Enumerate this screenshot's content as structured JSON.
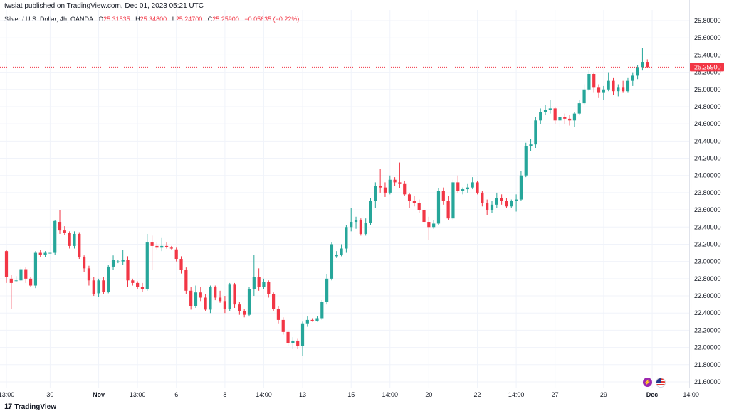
{
  "header": {
    "published_by": "twsiat published on TradingView.com, Dec 01, 2023 05:21 UTC"
  },
  "legend": {
    "symbol": "Silver / U.S. Dollar, 4h, OANDA",
    "open_label": "O",
    "open": "25.31535",
    "high_label": "H",
    "high": "25.34800",
    "low_label": "L",
    "low": "25.24700",
    "close_label": "C",
    "close": "25.25900",
    "change": "−0.05635 (−0.22%)"
  },
  "footer": {
    "brand": "TradingView",
    "logo_glyph": "17"
  },
  "badges": {
    "lightning_icon": "⚡",
    "flag_icon": "us-flag"
  },
  "colors": {
    "up": "#26a69a",
    "down": "#f23645",
    "grid": "#f0f3fa",
    "axis_text": "#131722",
    "price_label_bg": "#f23645"
  },
  "chart_data": {
    "type": "candlestick",
    "ylim": [
      21.5,
      25.9
    ],
    "y_ticks": [
      "25.80000",
      "25.60000",
      "25.40000",
      "25.20000",
      "25.00000",
      "24.80000",
      "24.60000",
      "24.40000",
      "24.20000",
      "24.00000",
      "23.80000",
      "23.60000",
      "23.40000",
      "23.20000",
      "23.00000",
      "22.80000",
      "22.60000",
      "22.40000",
      "22.20000",
      "22.00000",
      "21.80000",
      "21.60000"
    ],
    "x_ticks": [
      {
        "label": "13:00",
        "bar": 0
      },
      {
        "label": "30",
        "bar": 9
      },
      {
        "label": "Nov",
        "bar": 19
      },
      {
        "label": "13:00",
        "bar": 27
      },
      {
        "label": "6",
        "bar": 35
      },
      {
        "label": "8",
        "bar": 45
      },
      {
        "label": "14:00",
        "bar": 53
      },
      {
        "label": "13",
        "bar": 61
      },
      {
        "label": "15",
        "bar": 71
      },
      {
        "label": "14:00",
        "bar": 79
      },
      {
        "label": "20",
        "bar": 87
      },
      {
        "label": "22",
        "bar": 97
      },
      {
        "label": "14:00",
        "bar": 105
      },
      {
        "label": "27",
        "bar": 113
      },
      {
        "label": "29",
        "bar": 123
      },
      {
        "label": "Dec",
        "bar": 133
      },
      {
        "label": "14:00",
        "bar": 141
      }
    ],
    "last_price": 25.259,
    "last_price_label": "25.25900",
    "candles": [
      [
        23.12,
        23.13,
        22.75,
        22.82
      ],
      [
        22.8,
        22.84,
        22.45,
        22.75
      ],
      [
        22.78,
        22.83,
        22.76,
        22.78
      ],
      [
        22.78,
        22.93,
        22.77,
        22.91
      ],
      [
        22.91,
        22.93,
        22.75,
        22.8
      ],
      [
        22.8,
        22.82,
        22.7,
        22.72
      ],
      [
        22.72,
        23.12,
        22.69,
        23.1
      ],
      [
        23.1,
        23.13,
        23.05,
        23.08
      ],
      [
        23.08,
        23.12,
        23.05,
        23.1
      ],
      [
        23.1,
        23.1,
        23.1,
        23.1
      ],
      [
        23.1,
        23.48,
        23.08,
        23.47
      ],
      [
        23.46,
        23.6,
        23.32,
        23.36
      ],
      [
        23.36,
        23.41,
        23.31,
        23.33
      ],
      [
        23.33,
        23.35,
        23.15,
        23.18
      ],
      [
        23.18,
        23.35,
        23.15,
        23.32
      ],
      [
        23.32,
        23.34,
        23.03,
        23.05
      ],
      [
        23.05,
        23.07,
        22.88,
        22.92
      ],
      [
        22.92,
        22.95,
        22.72,
        22.78
      ],
      [
        22.78,
        22.82,
        22.6,
        22.62
      ],
      [
        22.63,
        22.8,
        22.59,
        22.78
      ],
      [
        22.78,
        22.82,
        22.62,
        22.65
      ],
      [
        22.65,
        22.96,
        22.63,
        22.94
      ],
      [
        22.94,
        23.07,
        22.9,
        23.02
      ],
      [
        23.0,
        23.02,
        22.98,
        23.0
      ],
      [
        23.0,
        23.13,
        22.96,
        23.02
      ],
      [
        23.02,
        23.06,
        22.7,
        22.78
      ],
      [
        22.78,
        22.8,
        22.72,
        22.75
      ],
      [
        22.75,
        22.77,
        22.68,
        22.7
      ],
      [
        22.7,
        22.75,
        22.65,
        22.68
      ],
      [
        22.68,
        23.32,
        22.66,
        23.22
      ],
      [
        23.22,
        23.3,
        22.9,
        23.18
      ],
      [
        23.18,
        23.22,
        23.14,
        23.16
      ],
      [
        23.16,
        23.28,
        23.12,
        23.18
      ],
      [
        23.18,
        23.22,
        23.15,
        23.17
      ],
      [
        23.16,
        23.18,
        23.14,
        23.15
      ],
      [
        23.14,
        23.16,
        23.0,
        23.03
      ],
      [
        23.03,
        23.06,
        22.86,
        22.9
      ],
      [
        22.9,
        22.93,
        22.62,
        22.66
      ],
      [
        22.66,
        22.7,
        22.44,
        22.48
      ],
      [
        22.48,
        22.72,
        22.46,
        22.64
      ],
      [
        22.64,
        22.7,
        22.54,
        22.58
      ],
      [
        22.58,
        22.62,
        22.42,
        22.44
      ],
      [
        22.44,
        22.72,
        22.4,
        22.7
      ],
      [
        22.7,
        22.72,
        22.55,
        22.58
      ],
      [
        22.58,
        22.66,
        22.52,
        22.54
      ],
      [
        22.54,
        22.6,
        22.4,
        22.45
      ],
      [
        22.45,
        22.75,
        22.42,
        22.73
      ],
      [
        22.73,
        22.75,
        22.46,
        22.5
      ],
      [
        22.5,
        22.53,
        22.38,
        22.42
      ],
      [
        22.42,
        22.45,
        22.35,
        22.38
      ],
      [
        22.38,
        22.7,
        22.36,
        22.68
      ],
      [
        22.68,
        23.08,
        22.6,
        22.82
      ],
      [
        22.82,
        22.92,
        22.66,
        22.7
      ],
      [
        22.7,
        22.8,
        22.68,
        22.76
      ],
      [
        22.76,
        22.78,
        22.58,
        22.62
      ],
      [
        22.62,
        22.64,
        22.42,
        22.45
      ],
      [
        22.45,
        22.48,
        22.28,
        22.32
      ],
      [
        22.32,
        22.35,
        22.15,
        22.18
      ],
      [
        22.18,
        22.2,
        22.02,
        22.05
      ],
      [
        22.05,
        22.12,
        21.98,
        22.08
      ],
      [
        22.08,
        22.1,
        21.98,
        22.02
      ],
      [
        22.02,
        22.3,
        21.9,
        22.28
      ],
      [
        22.28,
        22.36,
        22.24,
        22.32
      ],
      [
        22.32,
        22.34,
        22.3,
        22.31
      ],
      [
        22.31,
        22.36,
        22.3,
        22.34
      ],
      [
        22.34,
        22.55,
        22.32,
        22.53
      ],
      [
        22.53,
        22.85,
        22.5,
        22.8
      ],
      [
        22.8,
        23.22,
        22.78,
        23.2
      ],
      [
        23.06,
        23.12,
        23.04,
        23.08
      ],
      [
        23.08,
        23.2,
        23.06,
        23.15
      ],
      [
        23.15,
        23.42,
        23.1,
        23.4
      ],
      [
        23.4,
        23.62,
        23.35,
        23.46
      ],
      [
        23.46,
        23.52,
        23.38,
        23.48
      ],
      [
        23.48,
        23.5,
        23.3,
        23.32
      ],
      [
        23.32,
        23.5,
        23.3,
        23.45
      ],
      [
        23.45,
        23.74,
        23.42,
        23.7
      ],
      [
        23.7,
        23.92,
        23.62,
        23.88
      ],
      [
        23.88,
        24.08,
        23.8,
        23.86
      ],
      [
        23.86,
        23.92,
        23.75,
        23.8
      ],
      [
        23.8,
        24.0,
        23.78,
        23.95
      ],
      [
        23.95,
        23.98,
        23.88,
        23.92
      ],
      [
        23.92,
        24.15,
        23.85,
        23.9
      ],
      [
        23.9,
        23.94,
        23.76,
        23.78
      ],
      [
        23.78,
        23.8,
        23.62,
        23.7
      ],
      [
        23.7,
        23.76,
        23.64,
        23.68
      ],
      [
        23.68,
        23.72,
        23.56,
        23.6
      ],
      [
        23.6,
        23.62,
        23.42,
        23.46
      ],
      [
        23.46,
        23.52,
        23.25,
        23.4
      ],
      [
        23.4,
        23.48,
        23.38,
        23.44
      ],
      [
        23.44,
        23.85,
        23.42,
        23.82
      ],
      [
        23.82,
        23.86,
        23.66,
        23.7
      ],
      [
        23.7,
        23.76,
        23.48,
        23.5
      ],
      [
        23.5,
        23.95,
        23.48,
        23.92
      ],
      [
        23.92,
        24.0,
        23.8,
        23.82
      ],
      [
        23.82,
        23.86,
        23.78,
        23.84
      ],
      [
        23.84,
        23.9,
        23.8,
        23.86
      ],
      [
        23.86,
        23.98,
        23.84,
        23.92
      ],
      [
        23.92,
        23.94,
        23.78,
        23.8
      ],
      [
        23.8,
        23.82,
        23.64,
        23.68
      ],
      [
        23.68,
        23.72,
        23.54,
        23.6
      ],
      [
        23.6,
        23.7,
        23.56,
        23.66
      ],
      [
        23.66,
        23.8,
        23.62,
        23.74
      ],
      [
        23.74,
        23.78,
        23.66,
        23.7
      ],
      [
        23.7,
        23.74,
        23.62,
        23.64
      ],
      [
        23.64,
        23.72,
        23.62,
        23.7
      ],
      [
        23.7,
        23.78,
        23.58,
        23.72
      ],
      [
        23.72,
        24.05,
        23.7,
        24.0
      ],
      [
        24.0,
        24.38,
        23.98,
        24.34
      ],
      [
        24.34,
        24.42,
        24.28,
        24.36
      ],
      [
        24.36,
        24.68,
        24.32,
        24.64
      ],
      [
        24.64,
        24.78,
        24.6,
        24.74
      ],
      [
        24.74,
        24.82,
        24.7,
        24.76
      ],
      [
        24.76,
        24.88,
        24.72,
        24.78
      ],
      [
        24.78,
        24.8,
        24.6,
        24.64
      ],
      [
        24.64,
        24.7,
        24.56,
        24.68
      ],
      [
        24.68,
        24.72,
        24.6,
        24.66
      ],
      [
        24.66,
        24.7,
        24.58,
        24.64
      ],
      [
        24.64,
        24.74,
        24.56,
        24.72
      ],
      [
        24.72,
        24.88,
        24.7,
        24.84
      ],
      [
        24.84,
        25.06,
        24.82,
        25.0
      ],
      [
        25.0,
        25.22,
        24.98,
        25.18
      ],
      [
        25.18,
        25.2,
        24.96,
        25.02
      ],
      [
        25.02,
        25.06,
        24.9,
        24.96
      ],
      [
        24.96,
        25.04,
        24.88,
        25.0
      ],
      [
        25.0,
        25.2,
        24.98,
        25.1
      ],
      [
        25.1,
        25.14,
        24.94,
        24.98
      ],
      [
        24.98,
        25.06,
        24.92,
        25.02
      ],
      [
        25.02,
        25.1,
        24.96,
        24.98
      ],
      [
        24.98,
        25.14,
        24.96,
        25.1
      ],
      [
        25.1,
        25.2,
        25.04,
        25.16
      ],
      [
        25.16,
        25.28,
        25.12,
        25.26
      ],
      [
        25.26,
        25.48,
        25.22,
        25.32
      ],
      [
        25.32,
        25.35,
        25.25,
        25.26
      ]
    ]
  }
}
